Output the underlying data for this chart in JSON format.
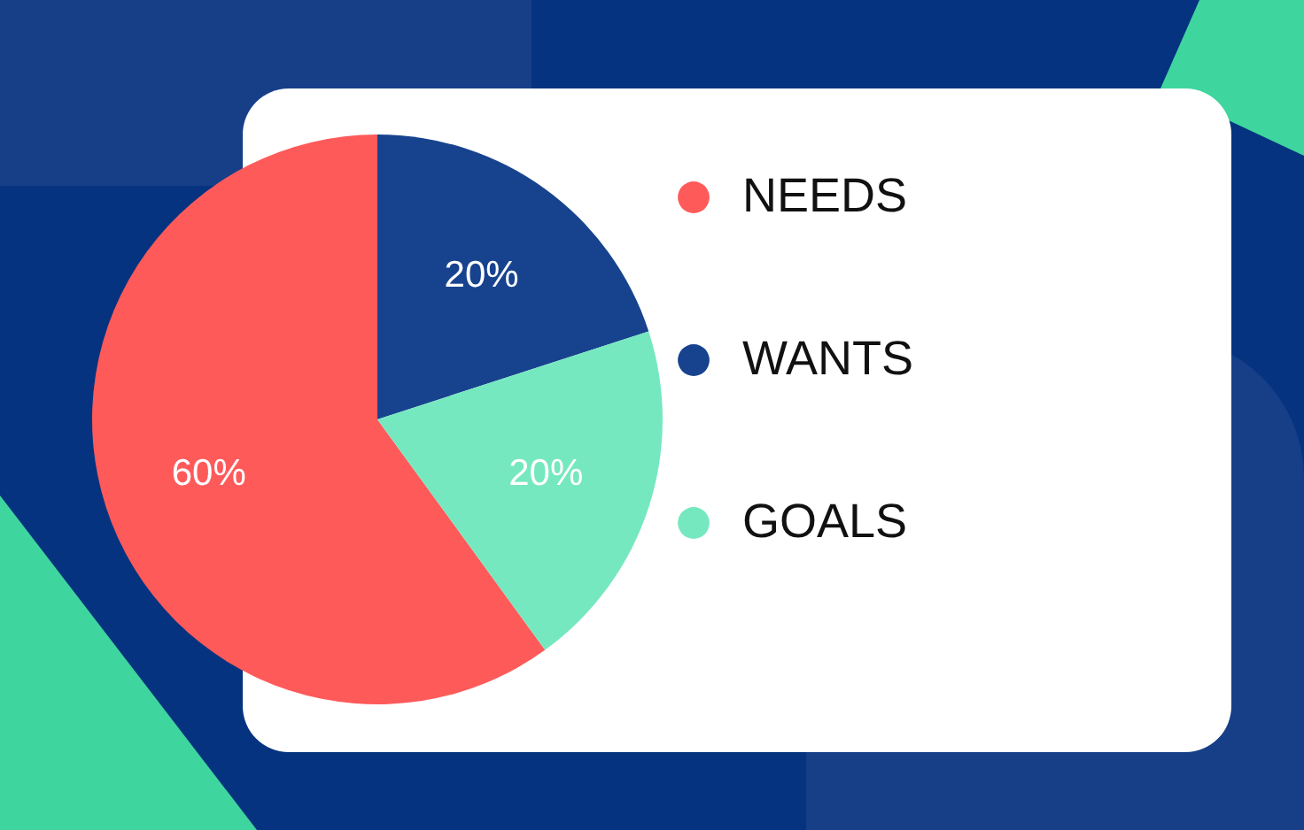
{
  "chart_data": {
    "type": "pie",
    "categories": [
      "NEEDS",
      "WANTS",
      "GOALS"
    ],
    "values": [
      60,
      20,
      20
    ],
    "colors": [
      "#ff5a5a",
      "#17438e",
      "#76e8c0"
    ],
    "value_labels": [
      "60%",
      "20%",
      "20%"
    ],
    "legend": "right"
  }
}
